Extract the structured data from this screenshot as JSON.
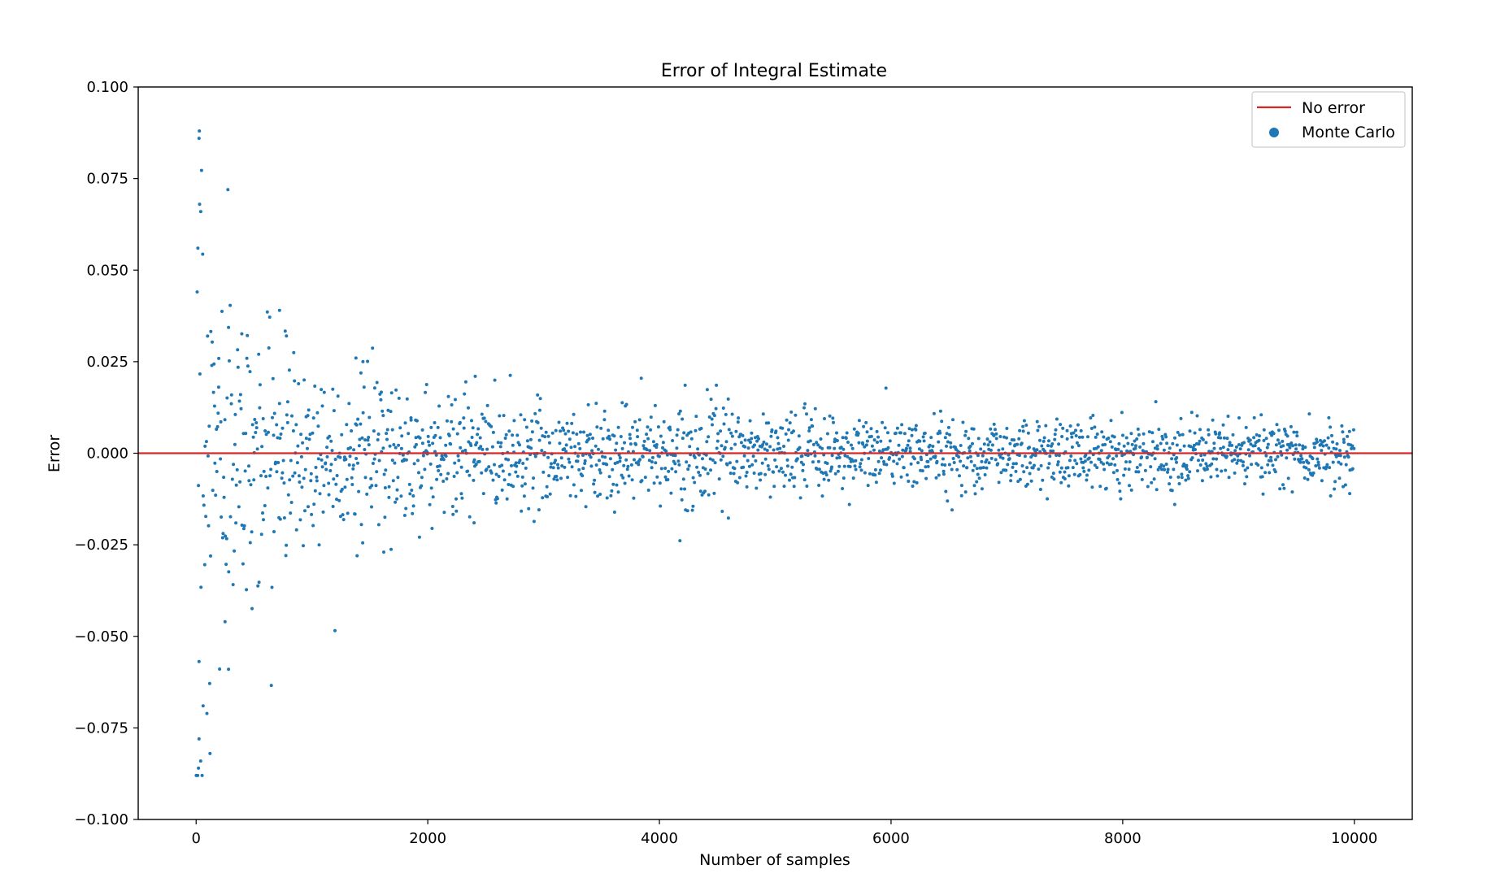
{
  "chart_data": {
    "type": "scatter",
    "title": "Error of Integral Estimate",
    "xlabel": "Number of samples",
    "ylabel": "Error",
    "xlim": [
      -500,
      10500
    ],
    "ylim": [
      -0.1,
      0.1
    ],
    "x_ticks": [
      0,
      2000,
      4000,
      6000,
      8000,
      10000
    ],
    "x_tick_labels": [
      "0",
      "2000",
      "4000",
      "6000",
      "8000",
      "10000"
    ],
    "y_ticks": [
      -0.1,
      -0.075,
      -0.05,
      -0.025,
      0.0,
      0.025,
      0.05,
      0.075,
      0.1
    ],
    "y_tick_labels": [
      "−0.100",
      "−0.075",
      "−0.050",
      "−0.025",
      "0.000",
      "0.025",
      "0.050",
      "0.075",
      "0.100"
    ],
    "grid": false,
    "legend": {
      "location": "upper right",
      "entries": [
        "No error",
        "Monte Carlo"
      ]
    },
    "series": [
      {
        "name": "Monte Carlo",
        "kind": "scatter",
        "color": "#1f77b4",
        "x_start": 1,
        "x_end": 10000,
        "count": 2000,
        "envelope_note": "Errors scatter around 0; spread shrinks roughly as 1/sqrt(n): about ±0.085 near n=0, ±0.03 near n=1000, ±0.015 near n=3000, ±0.01 near n=10000",
        "notable_points": [
          [
            25,
            0.086
          ],
          [
            20,
            -0.086
          ],
          [
            30,
            0.068
          ],
          [
            40,
            0.066
          ],
          [
            15,
            0.056
          ],
          [
            25,
            -0.078
          ],
          [
            120,
            -0.082
          ],
          [
            60,
            -0.069
          ],
          [
            280,
            -0.059
          ],
          [
            250,
            -0.046
          ],
          [
            720,
            0.039
          ],
          [
            780,
            0.032
          ],
          [
            1380,
            0.026
          ],
          [
            1440,
            0.025
          ],
          [
            2410,
            0.021
          ],
          [
            1620,
            -0.027
          ],
          [
            1390,
            -0.028
          ],
          [
            2400,
            -0.019
          ],
          [
            9960,
            -0.011
          ]
        ]
      },
      {
        "name": "No error",
        "kind": "line",
        "color": "#d62728",
        "y": 0.0
      }
    ]
  }
}
